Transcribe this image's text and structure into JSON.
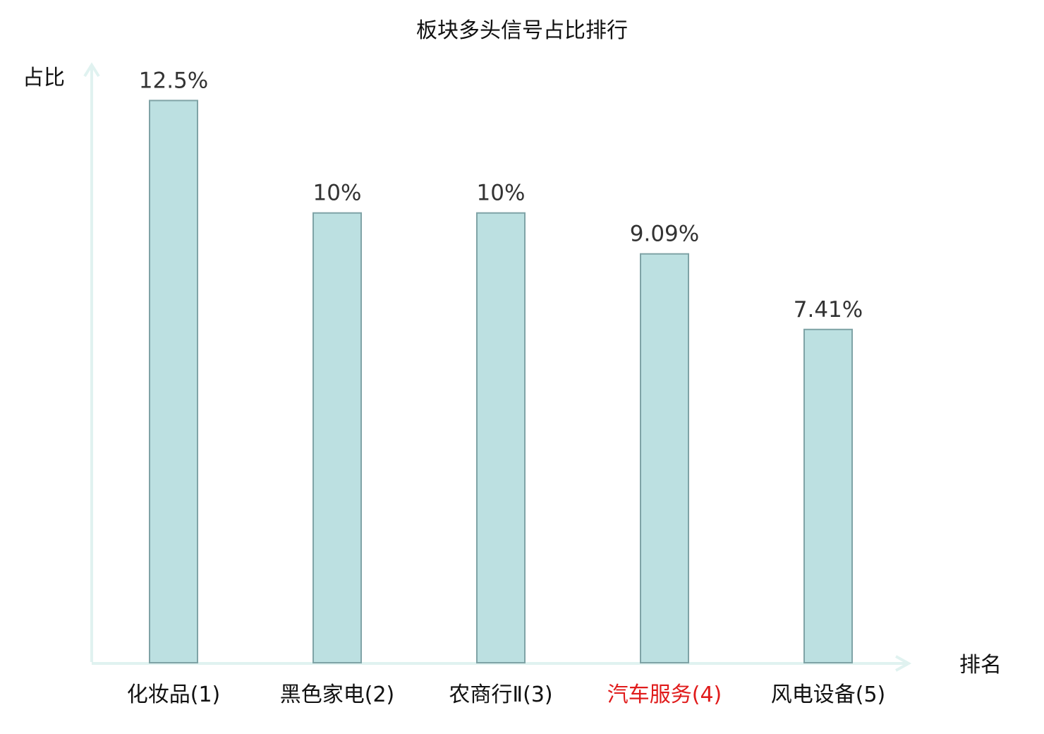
{
  "chart_data": {
    "type": "bar",
    "title": "板块多头信号占比排行",
    "ylabel": "占比",
    "xlabel": "排名",
    "ylim": [
      0,
      13.15
    ],
    "categories": [
      "化妆品(1)",
      "黑色家电(2)",
      "农商行Ⅱ(3)",
      "汽车服务(4)",
      "风电设备(5)"
    ],
    "values": [
      12.5,
      10,
      10,
      9.09,
      7.41
    ],
    "value_labels": [
      "12.5%",
      "10%",
      "10%",
      "9.09%",
      "7.41%"
    ],
    "highlight_index": 3,
    "grid": false,
    "legend": "none"
  },
  "colors": {
    "bar_fill": "#bce0e1",
    "bar_stroke": "#7fa3a6",
    "axis": "#e0f2f0",
    "label_default": "#111111",
    "label_highlight": "#e01b1b"
  }
}
